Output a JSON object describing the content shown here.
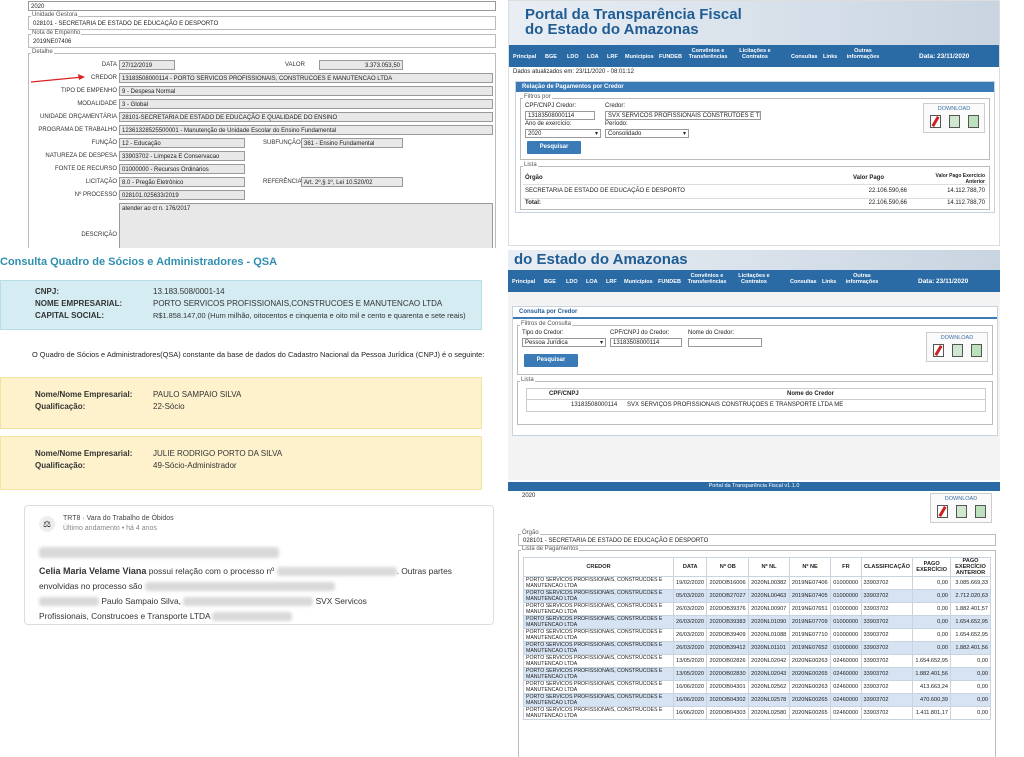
{
  "empenho_panel": {
    "year": "2020",
    "unidade_gestora_legend": "Unidade Gestora",
    "unidade_gestora": "028101 - SECRETARIA DE ESTADO DE EDUCAÇÃO E DESPORTO",
    "nota_legend": "Nota de Empenho",
    "nota": "2019NE07406",
    "detalhe_legend": "Detalhe",
    "fields": {
      "data_label": "DATA",
      "data": "27/12/2019",
      "valor_label": "VALOR",
      "valor": "3.373.053,50",
      "credor_label": "CREDOR",
      "credor": "13183508000114 - PORTO SERVICOS PROFISSIONAIS, CONSTRUCOES E MANUTENCAO LTDA",
      "tipo_label": "TIPO DE EMPENHO",
      "tipo": "9 - Despesa Normal",
      "modalidade_label": "MODALIDADE",
      "modalidade": "3 - Global",
      "uo_label": "UNIDADE ORÇAMENTÁRIA",
      "uo": "28101-SECRETARIA DE ESTADO DE EDUCAÇÃO E QUALIDADE DO ENSINO",
      "programa_label": "PROGRAMA DE TRABALHO",
      "programa": "12361328525500001 - Manutenção de Unidade Escolar do Ensino Fundamental",
      "funcao_label": "FUNÇÃO",
      "funcao": "12 - Educação",
      "subfuncao_label": "SUBFUNÇÃO",
      "subfuncao": "361 - Ensino Fundamental",
      "natureza_label": "NATUREZA DE DESPESA",
      "natureza": "33903702 - Limpeza E Conservacao",
      "fonte_label": "FONTE DE RECURSO",
      "fonte": "01000000 - Recursos Ordinários",
      "licitacao_label": "LICITAÇÃO",
      "licitacao": "8.0 - Pregão Eletrônico",
      "referencia_label": "REFERÊNCIA",
      "referencia": "Art. 2º,§ 1º, Lei 10.520/02",
      "processo_label": "Nº PROCESSO",
      "processo": "028101.025633/2019",
      "descricao_label": "DESCRIÇÃO",
      "descricao": "atender ao ct n. 176/2017"
    }
  },
  "portal": {
    "title_line1": "Portal da Transparência Fiscal",
    "title_line2": "do Estado do Amazonas",
    "nav": [
      "Principal",
      "BGE",
      "LDO",
      "LOA",
      "LRF",
      "Municípios",
      "FUNDEB",
      "Convênios e Transferências",
      "Licitações e Contratos",
      "Consultas",
      "Links",
      "Outras informações"
    ],
    "date": "Data: 23/11/2020",
    "updated": "Dados atualizados em: 23/11/2020 - 08:01:12",
    "download": "DOWNLOAD"
  },
  "pagamentos_panel": {
    "section_title": "Relação de Pagamentos por Credor",
    "filtros_legend": "Filtros por",
    "cpf_label": "CPF/CNPJ Credor:",
    "cpf_value": "13183508000114",
    "credor_label": "Credor:",
    "credor_value": "SVX SERVICOS PROFISSIONAIS CONSTRUTOES E TRAN",
    "ano_label": "Ano de exercício:",
    "ano_value": "2020",
    "periodo_label": "Período:",
    "periodo_value": "Consolidado",
    "search_btn": "Pesquisar",
    "lista_legend": "Lista",
    "col_orgao": "Órgão",
    "col_valor": "Valor Pago",
    "col_valor_ant": "Valor Pago Exercício Anterior",
    "row_orgao": "SECRETARIA DE ESTADO DE EDUCAÇÃO E DESPORTO",
    "row_valor": "22.106.590,66",
    "row_ant": "14.112.788,70",
    "total_label": "Total:",
    "total_valor": "22.106.590,66",
    "total_ant": "14.112.788,70"
  },
  "credor_panel": {
    "section_title": "Consulta por Credor",
    "filtros_legend": "Filtros de Consulta",
    "tipo_label": "Tipo do Credor:",
    "tipo_value": "Pessoa Jurídica",
    "cpf_label": "CPF/CNPJ do Credor:",
    "cpf_value": "13183508000114",
    "nome_label": "Nome do Credor:",
    "search_btn": "Pesquisar",
    "lista_legend": "Lista",
    "col_cpf": "CPF/CNPJ",
    "col_nome": "Nome do Credor",
    "row_cpf": "13183508000114",
    "row_nome": "SVX SERVIÇOS PROFISSIONAIS CONSTRUÇOES E TRANSPORTE LTDA ME"
  },
  "qsa": {
    "title": "Consulta Quadro de Sócios e Administradores - QSA",
    "cnpj_label": "CNPJ:",
    "cnpj": "13.183.508/0001-14",
    "nome_label": "NOME EMPRESARIAL:",
    "nome": "PORTO SERVICOS PROFISSIONAIS,CONSTRUCOES E MANUTENCAO LTDA",
    "capital_label": "CAPITAL SOCIAL:",
    "capital": "R$1.858.147,00 (Hum milhão, oitocentos e cinquenta e oito mil e cento e quarenta e sete reais)",
    "intro": "O Quadro de Sócios e Administradores(QSA) constante da base de dados do Cadastro Nacional da Pessoa Jurídica (CNPJ) é o seguinte:",
    "socios": [
      {
        "nome_label": "Nome/Nome Empresarial:",
        "nome": "PAULO SAMPAIO SILVA",
        "qual_label": "Qualificação:",
        "qual": "22-Sócio"
      },
      {
        "nome_label": "Nome/Nome Empresarial:",
        "nome": "JULIE RODRIGO PORTO DA SILVA",
        "qual_label": "Qualificação:",
        "qual": "49-Sócio-Administrador"
      }
    ]
  },
  "news": {
    "source": "TRT8 · Vara do Trabalho de Óbidos",
    "status": "Último andamento • há 4 anos",
    "name": "Celia Maria Velame Viana",
    "text1": " possui relação com o processo nº",
    "text2": ". Outras partes envolvidas no processo são",
    "text3": " Paulo Sampaio Silva,",
    "text4": " SVX Servicos",
    "text5": "Profissionais, Construcoes e Transporte LTDA"
  },
  "pagamentos_lista": {
    "footer_title": "Portal da Transparência Fiscal v1.1.0",
    "year": "2020",
    "orgao_legend": "Órgão",
    "orgao": "028101 - SECRETARIA DE ESTADO DE EDUCAÇÃO E DESPORTO",
    "lista_legend": "Lista de Pagamentos",
    "headers": [
      "CREDOR",
      "DATA",
      "Nº OB",
      "Nº NL",
      "Nº NE",
      "FR",
      "CLASSIFICAÇÃO",
      "PAGO EXERCÍCIO",
      "PAGO EXERCÍCIO ANTERIOR"
    ],
    "rows": [
      [
        "PORTO SERVICOS PROFISSIONAIS, CONSTRUCOES E MANUTENCAO LTDA",
        "19/02/2020",
        "2020OB16006",
        "2020NL00382",
        "2019NE07406",
        "01000000",
        "33903702",
        "0,00",
        "3.085.669,33"
      ],
      [
        "PORTO SERVICOS PROFISSIONAIS, CONSTRUCOES E MANUTENCAO LTDA",
        "05/03/2020",
        "2020OB27027",
        "2020NL00463",
        "2019NE07405",
        "01000000",
        "33903702",
        "0,00",
        "2.712.020,63"
      ],
      [
        "PORTO SERVICOS PROFISSIONAIS, CONSTRUCOES E MANUTENCAO LTDA",
        "26/03/2020",
        "2020OB39376",
        "2020NL00907",
        "2019NE07651",
        "01000000",
        "33903702",
        "0,00",
        "1.882.401,57"
      ],
      [
        "PORTO SERVICOS PROFISSIONAIS, CONSTRUCOES E MANUTENCAO LTDA",
        "26/03/2020",
        "2020OB39383",
        "2020NL01090",
        "2019NE07709",
        "01000000",
        "33903702",
        "0,00",
        "1.654.652,95"
      ],
      [
        "PORTO SERVICOS PROFISSIONAIS, CONSTRUCOES E MANUTENCAO LTDA",
        "26/03/2020",
        "2020OB39409",
        "2020NL01088",
        "2019NE07710",
        "01000000",
        "33903702",
        "0,00",
        "1.654.652,95"
      ],
      [
        "PORTO SERVICOS PROFISSIONAIS, CONSTRUCOES E MANUTENCAO LTDA",
        "26/03/2020",
        "2020OB39412",
        "2020NL01101",
        "2019NE07652",
        "01000000",
        "33903702",
        "0,00",
        "1.882.401,56"
      ],
      [
        "PORTO SERVICOS PROFISSIONAIS, CONSTRUCOES E MANUTENCAO LTDA",
        "13/05/2020",
        "2020OB02826",
        "2020NL02042",
        "2020NE00263",
        "02460000",
        "33903702",
        "1.654.652,95",
        "0,00"
      ],
      [
        "PORTO SERVICOS PROFISSIONAIS, CONSTRUCOES E MANUTENCAO LTDA",
        "13/05/2020",
        "2020OB02830",
        "2020NL02043",
        "2020NE00265",
        "02460000",
        "33903702",
        "1.882.401,56",
        "0,00"
      ],
      [
        "PORTO SERVICOS PROFISSIONAIS, CONSTRUCOES E MANUTENCAO LTDA",
        "16/06/2020",
        "2020OB04301",
        "2020NL02562",
        "2020NE00263",
        "02460000",
        "33903702",
        "413.663,24",
        "0,00"
      ],
      [
        "PORTO SERVICOS PROFISSIONAIS, CONSTRUCOES E MANUTENCAO LTDA",
        "16/06/2020",
        "2020OB04302",
        "2020NL02578",
        "2020NE00265",
        "02460000",
        "33903702",
        "470.600,39",
        "0,00"
      ],
      [
        "PORTO SERVICOS PROFISSIONAIS, CONSTRUCOES E MANUTENCAO LTDA",
        "16/06/2020",
        "2020OB04303",
        "2020NL02580",
        "2020NE00265",
        "02460000",
        "33903702",
        "1.411.801,17",
        "0,00"
      ]
    ]
  }
}
